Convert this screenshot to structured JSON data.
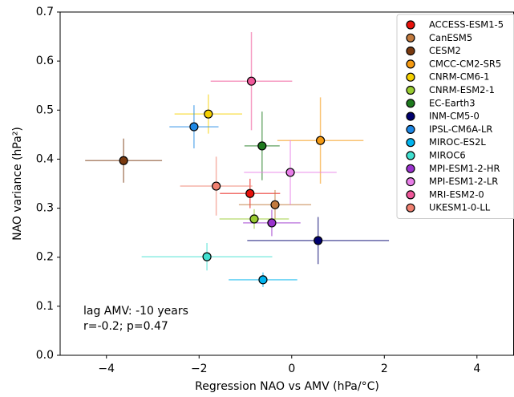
{
  "chart_data": {
    "type": "scatter",
    "x_label": "Regression NAO vs AMV (hPa/°C)",
    "y_label": "NAO variance (hPa²)",
    "annotation": [
      "lag AMV: -10 years",
      "r=-0.2; p=0.47"
    ],
    "xlim": [
      -5,
      4.8
    ],
    "ylim": [
      0,
      0.7
    ],
    "xticks": [
      {
        "value": -4,
        "label": "−4"
      },
      {
        "value": -2,
        "label": "−2"
      },
      0,
      2,
      4
    ],
    "yticks": [
      {
        "value": 0,
        "label": "0.0"
      },
      0.1,
      0.2,
      0.3,
      0.4,
      0.5,
      0.6,
      0.7
    ],
    "legend": "upper right",
    "series": [
      {
        "name": "ACCESS-ESM1-5",
        "color": "#e8120c",
        "x": [
          -0.9
        ],
        "values": [
          0.33
        ],
        "xerr": [
          0.65
        ],
        "yerr": [
          0.03
        ]
      },
      {
        "name": "CanESM5",
        "color": "#c27a3e",
        "x": [
          -0.36
        ],
        "values": [
          0.307
        ],
        "xerr": [
          0.78
        ],
        "yerr": [
          0.03
        ]
      },
      {
        "name": "CESM2",
        "color": "#7a3a10",
        "x": [
          -3.63
        ],
        "values": [
          0.397
        ],
        "xerr": [
          0.83
        ],
        "yerr": [
          0.045
        ]
      },
      {
        "name": "CMCC-CM2-SR5",
        "color": "#f59a12",
        "x": [
          0.62
        ],
        "values": [
          0.438
        ],
        "xerr": [
          0.93
        ],
        "yerr": [
          0.088
        ]
      },
      {
        "name": "CNRM-CM6-1",
        "color": "#f5d000",
        "x": [
          -1.8
        ],
        "values": [
          0.492
        ],
        "xerr": [
          0.73
        ],
        "yerr": [
          0.04
        ]
      },
      {
        "name": "CNRM-ESM2-1",
        "color": "#9acd32",
        "x": [
          -0.81
        ],
        "values": [
          0.278
        ],
        "xerr": [
          0.75
        ],
        "yerr": [
          0.02
        ]
      },
      {
        "name": "EC-Earth3",
        "color": "#1e7a1e",
        "x": [
          -0.64
        ],
        "values": [
          0.427
        ],
        "xerr": [
          0.38
        ],
        "yerr": [
          0.07
        ]
      },
      {
        "name": "INM-CM5-0",
        "color": "#00006e",
        "x": [
          0.57
        ],
        "values": [
          0.234
        ],
        "xerr": [
          1.53
        ],
        "yerr": [
          0.048
        ]
      },
      {
        "name": "IPSL-CM6A-LR",
        "color": "#1e88e5",
        "x": [
          -2.11
        ],
        "values": [
          0.466
        ],
        "xerr": [
          0.53
        ],
        "yerr": [
          0.044
        ]
      },
      {
        "name": "MIROC-ES2L",
        "color": "#00b4ef",
        "x": [
          -0.62
        ],
        "values": [
          0.154
        ],
        "xerr": [
          0.74
        ],
        "yerr": [
          0.015
        ]
      },
      {
        "name": "MIROC6",
        "color": "#40e0d0",
        "x": [
          -1.83
        ],
        "values": [
          0.201
        ],
        "xerr": [
          1.41
        ],
        "yerr": [
          0.028
        ]
      },
      {
        "name": "MPI-ESM1-2-HR",
        "color": "#9a32cd",
        "x": [
          -0.43
        ],
        "values": [
          0.27
        ],
        "xerr": [
          0.62
        ],
        "yerr": [
          0.027
        ]
      },
      {
        "name": "MPI-ESM1-2-LR",
        "color": "#e87ee8",
        "x": [
          -0.03
        ],
        "values": [
          0.373
        ],
        "xerr": [
          1.0
        ],
        "yerr": [
          0.066
        ]
      },
      {
        "name": "MRI-ESM2-0",
        "color": "#f0589a",
        "x": [
          -0.87
        ],
        "values": [
          0.559
        ],
        "xerr": [
          0.88
        ],
        "yerr": [
          0.1
        ]
      },
      {
        "name": "UKESM1-0-LL",
        "color": "#f08070",
        "x": [
          -1.63
        ],
        "values": [
          0.345
        ],
        "xerr": [
          0.78
        ],
        "yerr": [
          0.06
        ]
      }
    ]
  }
}
